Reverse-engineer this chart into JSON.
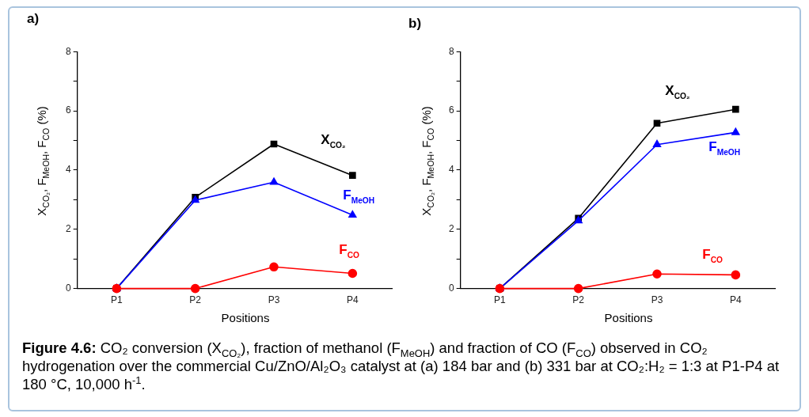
{
  "chart_data": [
    {
      "type": "line",
      "title": "a)",
      "xlabel": "Positions",
      "ylabel": "X$_{CO₂}$, F$_{MeOH}$, F$_{CO}$ (%)",
      "categories": [
        "P1",
        "P2",
        "P3",
        "P4"
      ],
      "ylim": [
        0,
        8
      ],
      "yticks": [
        0,
        {
          "value": 1,
          "label": null
        },
        2,
        {
          "value": 3,
          "label": null
        },
        4,
        {
          "value": 5,
          "label": null
        },
        6,
        {
          "value": 7,
          "label": null
        },
        8
      ],
      "grid": false,
      "legend": false,
      "line_style": "solid",
      "series": [
        {
          "name": "X$_{CO₂}$",
          "color": "#000000",
          "marker": "square",
          "values": [
            0,
            3.08,
            4.88,
            3.82
          ]
        },
        {
          "name": "F$_{MeOH}$",
          "color": "#0000ff",
          "marker": "triangle",
          "values": [
            0,
            2.98,
            3.59,
            2.48
          ]
        },
        {
          "name": "F$_{CO}$",
          "color": "#ff0000",
          "marker": "circle",
          "values": [
            0,
            0,
            0.73,
            0.51
          ]
        }
      ]
    },
    {
      "type": "line",
      "title": "b)",
      "xlabel": "Positions",
      "ylabel": "X$_{CO₂}$, F$_{MeOH}$, F$_{CO}$ (%)",
      "categories": [
        "P1",
        "P2",
        "P3",
        "P4"
      ],
      "ylim": [
        0,
        8
      ],
      "yticks": [
        0,
        {
          "value": 1,
          "label": null
        },
        2,
        {
          "value": 3,
          "label": null
        },
        4,
        {
          "value": 5,
          "label": null
        },
        6,
        {
          "value": 7,
          "label": null
        },
        8
      ],
      "grid": false,
      "legend": false,
      "line_style": "solid",
      "annotations": [
        "Figure 4.6: CO₂ conversion (X$_{CO₂}$), fraction of methanol (F$_{MeOH}$) and fraction of CO (F$_{CO}$) observed in CO₂ hydrogenation over the commercial Cu/ZnO/Al₂O₃ catalyst at (a) 184 bar and (b) 331 bar at CO₂:H₂ = 1:3 at P1-P4 at 180 °C, 10,000 h$^{-1}$."
      ],
      "series": [
        {
          "name": "X$_{CO₂}$",
          "color": "#000000",
          "marker": "square",
          "values": [
            0,
            2.37,
            5.58,
            6.05
          ]
        },
        {
          "name": "F$_{MeOH}$",
          "color": "#0000ff",
          "marker": "triangle",
          "values": [
            0,
            2.29,
            4.86,
            5.27
          ]
        },
        {
          "name": "F$_{CO}$",
          "color": "#ff0000",
          "marker": "circle",
          "values": [
            0,
            0,
            0.49,
            0.46
          ]
        }
      ]
    }
  ]
}
